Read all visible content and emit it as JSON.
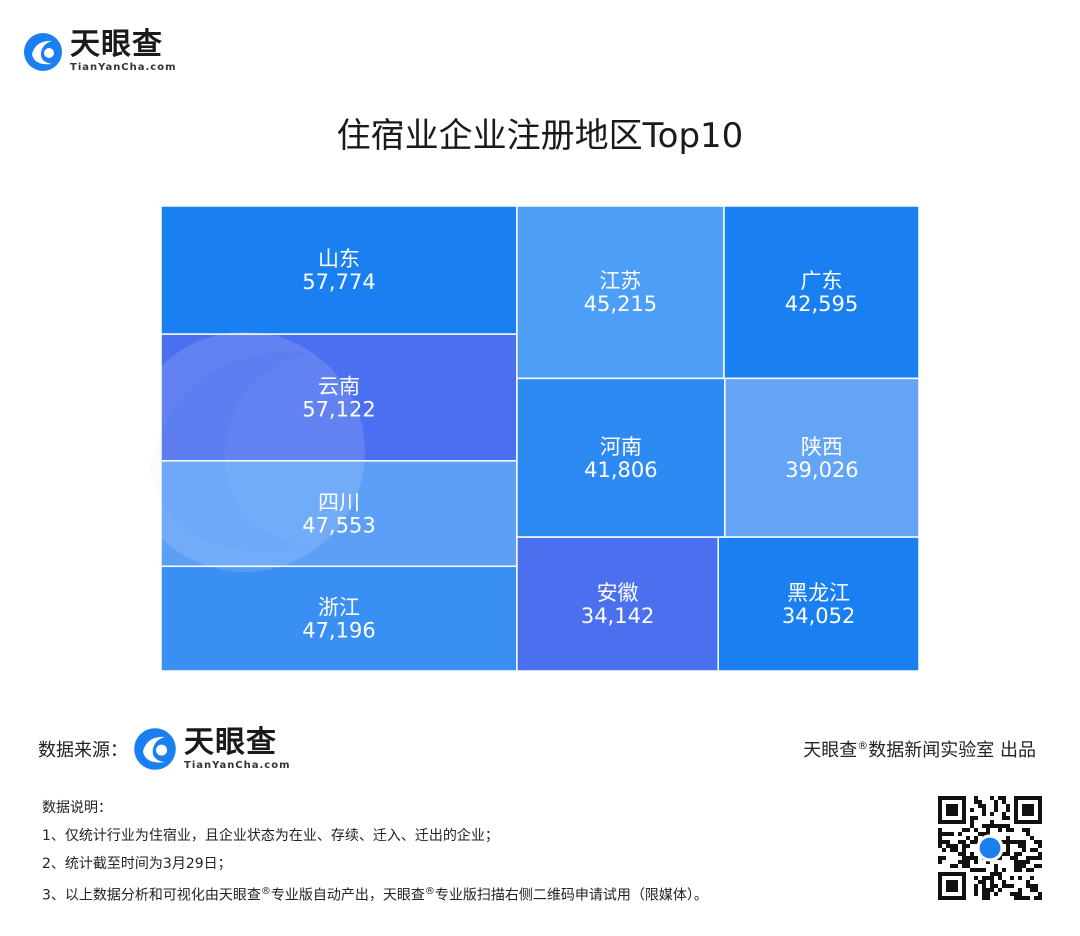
{
  "brand": {
    "name_cn": "天眼查",
    "name_en": "TianYanCha.com"
  },
  "title": "住宿业企业注册地区Top10",
  "chart_data": {
    "type": "treemap",
    "title": "住宿业企业注册地区Top10",
    "items": [
      {
        "label": "山东",
        "value": 57774,
        "value_text": "57,774",
        "color": "#1a7ff0"
      },
      {
        "label": "云南",
        "value": 57122,
        "value_text": "57,122",
        "color": "#4a6ff0"
      },
      {
        "label": "四川",
        "value": 47553,
        "value_text": "47,553",
        "color": "#5d9ff7"
      },
      {
        "label": "浙江",
        "value": 47196,
        "value_text": "47,196",
        "color": "#3a8ff4"
      },
      {
        "label": "江苏",
        "value": 45215,
        "value_text": "45,215",
        "color": "#4d9ef6"
      },
      {
        "label": "广东",
        "value": 42595,
        "value_text": "42,595",
        "color": "#1a80f2"
      },
      {
        "label": "河南",
        "value": 41806,
        "value_text": "41,806",
        "color": "#2e8af3"
      },
      {
        "label": "陕西",
        "value": 39026,
        "value_text": "39,026",
        "color": "#64a4f7"
      },
      {
        "label": "安徽",
        "value": 34142,
        "value_text": "34,142",
        "color": "#4a70f0"
      },
      {
        "label": "黑龙江",
        "value": 34052,
        "value_text": "34,052",
        "color": "#1a7ff0"
      }
    ]
  },
  "footer": {
    "source_label": "数据来源：",
    "credit_prefix": "天眼查",
    "credit_reg": "®",
    "credit_suffix": "数据新闻实验室 出品"
  },
  "notes": {
    "heading": "数据说明：",
    "line1": "1、仅统计行业为住宿业，且企业状态为在业、存续、迁入、迁出的企业；",
    "line2": "2、统计截至时间为3月29日；",
    "line3_a": "3、以上数据分析和可视化由天眼查",
    "line3_reg1": "®",
    "line3_b": "专业版自动产出，天眼查",
    "line3_reg2": "®",
    "line3_c": "专业版扫描右侧二维码申请试用（限媒体）。"
  },
  "colors": {
    "primary": "#1a7ff0",
    "accent": "#4a6ff0"
  }
}
